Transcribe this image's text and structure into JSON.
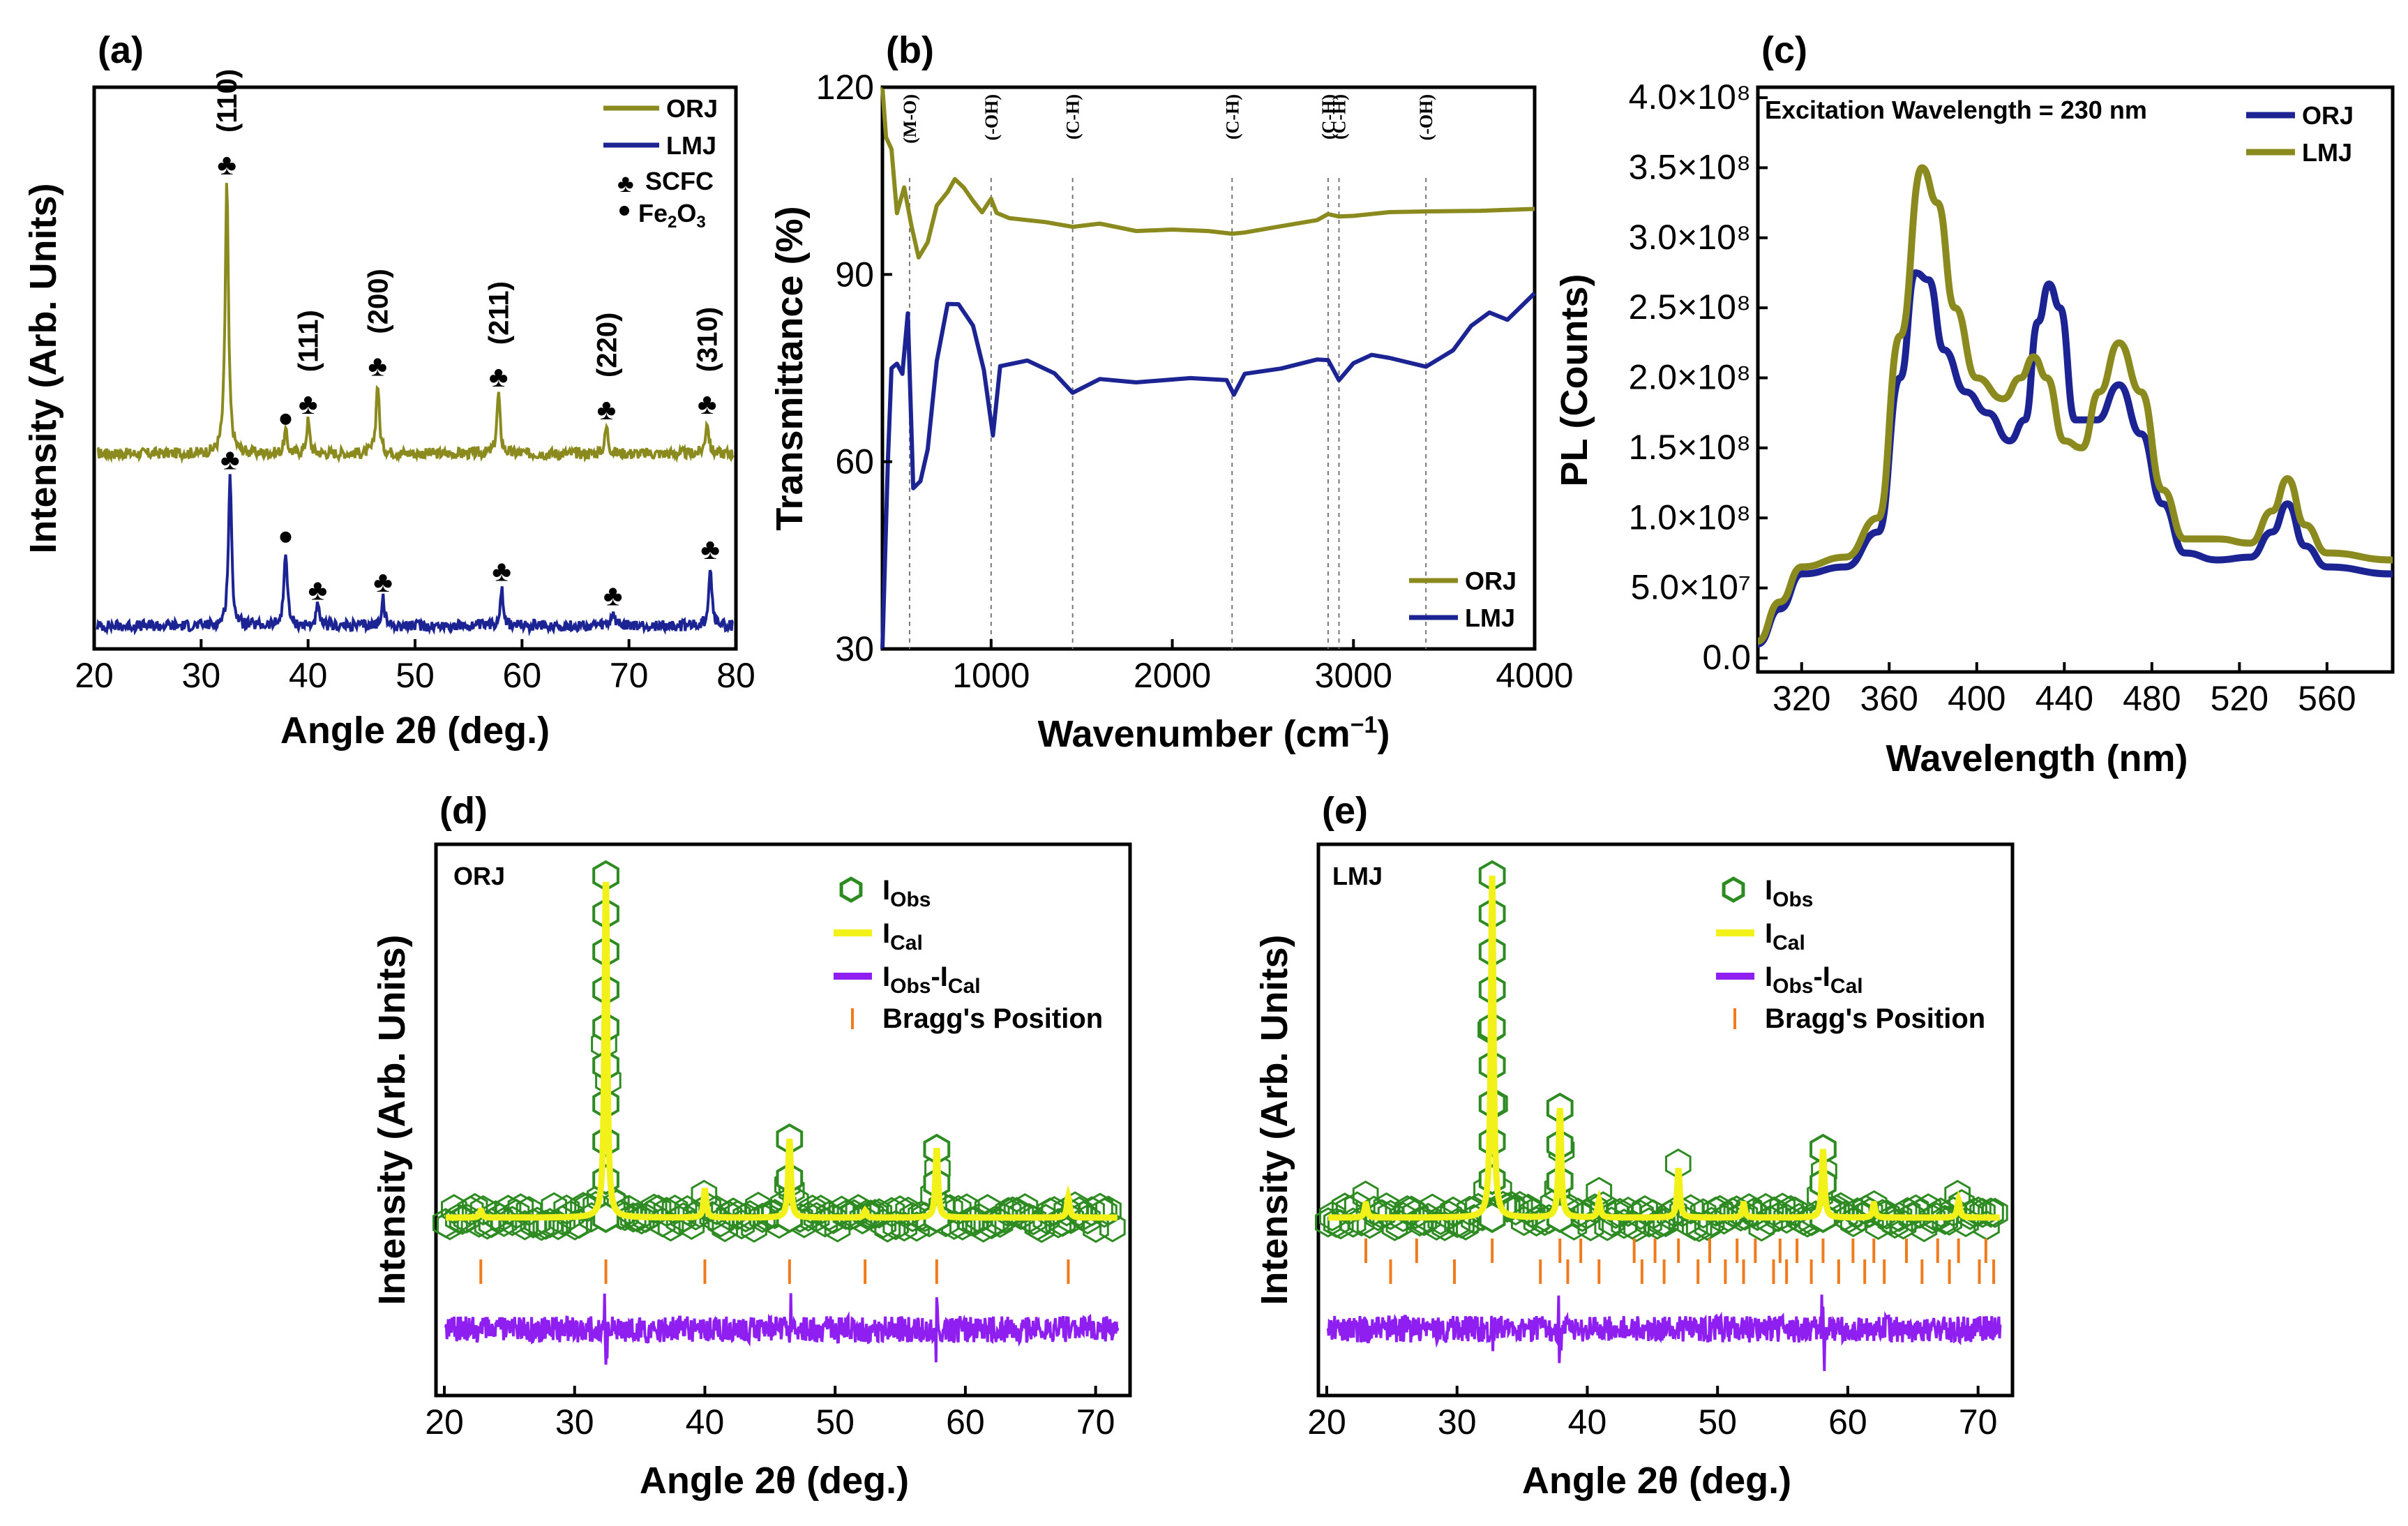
{
  "colors": {
    "orj": "#8a8a1e",
    "lmj": "#1c2493",
    "obs": "#2e8b22",
    "cal": "#f2f21a",
    "diff": "#8f1ff0",
    "bragg": "#f07b1c"
  },
  "chart_data": [
    {
      "id": "a",
      "type": "line",
      "panel_label": "(a)",
      "xlabel": "Angle 2θ (deg.)",
      "ylabel": "Intensity (Arb. Units)",
      "xlim": [
        20,
        80
      ],
      "xticks": [
        20,
        30,
        40,
        50,
        60,
        70,
        80
      ],
      "series": [
        {
          "name": "ORJ",
          "color": "#8a8a1e",
          "offset": 0.55,
          "amp": 1.5,
          "peaks": [
            [
              32.4,
              1.0
            ],
            [
              37.9,
              0.08
            ],
            [
              40.0,
              0.12
            ],
            [
              46.5,
              0.26
            ],
            [
              57.8,
              0.22
            ],
            [
              67.9,
              0.1
            ],
            [
              77.3,
              0.12
            ]
          ]
        },
        {
          "name": "LMJ",
          "color": "#1c2493",
          "offset": 0.05,
          "amp": 1.0,
          "peaks": [
            [
              32.7,
              0.55
            ],
            [
              37.9,
              0.28
            ],
            [
              40.9,
              0.07
            ],
            [
              47.0,
              0.1
            ],
            [
              58.1,
              0.14
            ],
            [
              68.5,
              0.05
            ],
            [
              77.6,
              0.22
            ]
          ]
        }
      ],
      "hkl_labels": [
        {
          "angle": 32.4,
          "label": "(110)"
        },
        {
          "angle": 40.0,
          "label": "(111)"
        },
        {
          "angle": 46.5,
          "label": "(200)"
        },
        {
          "angle": 57.8,
          "label": "(211)"
        },
        {
          "angle": 67.9,
          "label": "(220)"
        },
        {
          "angle": 77.3,
          "label": "(310)"
        }
      ],
      "legend": [
        "ORJ",
        "LMJ",
        "SCFC",
        "Fe2O3"
      ],
      "legend_position": "top-right"
    },
    {
      "id": "b",
      "type": "line",
      "panel_label": "(b)",
      "xlabel": "Wavenumber (cm⁻¹)",
      "ylabel": "Transmittance (%)",
      "xlim": [
        400,
        4000
      ],
      "ylim": [
        30,
        120
      ],
      "xticks": [
        1000,
        2000,
        3000,
        4000
      ],
      "yticks": [
        30,
        60,
        90,
        120
      ],
      "series": [
        {
          "name": "ORJ",
          "color": "#8a8a1e",
          "points": [
            [
              400,
              120
            ],
            [
              420,
              112
            ],
            [
              450,
              110
            ],
            [
              480,
              100
            ],
            [
              520,
              104
            ],
            [
              560,
              98
            ],
            [
              600,
              93
            ],
            [
              650,
              95
            ],
            [
              700,
              101
            ],
            [
              760,
              103
            ],
            [
              800,
              105
            ],
            [
              850,
              104
            ],
            [
              900,
              102
            ],
            [
              950,
              100
            ],
            [
              1000,
              102
            ],
            [
              1030,
              100
            ],
            [
              1100,
              99
            ],
            [
              1300,
              98.5
            ],
            [
              1450,
              97.5
            ],
            [
              1600,
              98
            ],
            [
              1800,
              97
            ],
            [
              2000,
              97
            ],
            [
              2200,
              97
            ],
            [
              2330,
              96.5
            ],
            [
              2400,
              97
            ],
            [
              2600,
              98
            ],
            [
              2800,
              99
            ],
            [
              2860,
              99.5
            ],
            [
              2920,
              99
            ],
            [
              3000,
              99.5
            ],
            [
              3200,
              100
            ],
            [
              3400,
              100
            ],
            [
              3700,
              100
            ],
            [
              4000,
              100.5
            ]
          ]
        },
        {
          "name": "LMJ",
          "color": "#1c2493",
          "points": [
            [
              400,
              30
            ],
            [
              430,
              60
            ],
            [
              450,
              75
            ],
            [
              480,
              76
            ],
            [
              510,
              74
            ],
            [
              540,
              84
            ],
            [
              570,
              56
            ],
            [
              610,
              57
            ],
            [
              650,
              62
            ],
            [
              700,
              76
            ],
            [
              760,
              85
            ],
            [
              820,
              85
            ],
            [
              900,
              82
            ],
            [
              960,
              75
            ],
            [
              1010,
              64
            ],
            [
              1050,
              75
            ],
            [
              1200,
              76
            ],
            [
              1350,
              74
            ],
            [
              1450,
              71
            ],
            [
              1600,
              73
            ],
            [
              1800,
              73
            ],
            [
              2100,
              73.5
            ],
            [
              2300,
              73
            ],
            [
              2340,
              71
            ],
            [
              2400,
              74
            ],
            [
              2600,
              75
            ],
            [
              2800,
              76.5
            ],
            [
              2860,
              76
            ],
            [
              2920,
              73
            ],
            [
              3000,
              76
            ],
            [
              3100,
              77
            ],
            [
              3200,
              76.5
            ],
            [
              3400,
              75.5
            ],
            [
              3550,
              78
            ],
            [
              3650,
              82
            ],
            [
              3750,
              84
            ],
            [
              3850,
              83
            ],
            [
              4000,
              87
            ]
          ]
        }
      ],
      "bands": [
        {
          "wn": 550,
          "label": "(M-O)"
        },
        {
          "wn": 1000,
          "label": "(-OH)"
        },
        {
          "wn": 1450,
          "label": "(C-H)"
        },
        {
          "wn": 2330,
          "label": "(C-H)"
        },
        {
          "wn": 2860,
          "label": "(C-H)"
        },
        {
          "wn": 2920,
          "label": "(C-H)"
        },
        {
          "wn": 3400,
          "label": "(-OH)"
        }
      ],
      "legend_position": "bottom-right"
    },
    {
      "id": "c",
      "type": "line",
      "panel_label": "(c)",
      "xlabel": "Wavelength (nm)",
      "ylabel": "PL (Counts)",
      "annotation": "Excitation Wavelength = 230 nm",
      "xlim": [
        300,
        590
      ],
      "ylim": [
        0,
        400000000.0
      ],
      "xticks": [
        320,
        360,
        400,
        440,
        480,
        520,
        560
      ],
      "ytick_labels": [
        "0.0",
        "5.0×10⁷",
        "1.0×10⁸",
        "1.5×10⁸",
        "2.0×10⁸",
        "2.5×10⁸",
        "3.0×10⁸",
        "3.5×10⁸",
        "4.0×10⁸"
      ],
      "series": [
        {
          "name": "ORJ",
          "color": "#1c2493",
          "points": [
            [
              300,
              10000000.0
            ],
            [
              310,
              35000000.0
            ],
            [
              320,
              60000000.0
            ],
            [
              340,
              65000000.0
            ],
            [
              355,
              90000000.0
            ],
            [
              365,
              200000000.0
            ],
            [
              372,
              275000000.0
            ],
            [
              378,
              270000000.0
            ],
            [
              385,
              220000000.0
            ],
            [
              395,
              190000000.0
            ],
            [
              405,
              175000000.0
            ],
            [
              415,
              155000000.0
            ],
            [
              422,
              170000000.0
            ],
            [
              428,
              240000000.0
            ],
            [
              433,
              267000000.0
            ],
            [
              438,
              250000000.0
            ],
            [
              445,
              170000000.0
            ],
            [
              455,
              170000000.0
            ],
            [
              465,
              195000000.0
            ],
            [
              475,
              160000000.0
            ],
            [
              485,
              110000000.0
            ],
            [
              495,
              75000000.0
            ],
            [
              510,
              70000000.0
            ],
            [
              525,
              72000000.0
            ],
            [
              535,
              90000000.0
            ],
            [
              542,
              110000000.0
            ],
            [
              550,
              80000000.0
            ],
            [
              560,
              65000000.0
            ],
            [
              590,
              60000000.0
            ]
          ]
        },
        {
          "name": "LMJ",
          "color": "#8a8a1e",
          "points": [
            [
              300,
              12000000.0
            ],
            [
              310,
              40000000.0
            ],
            [
              320,
              65000000.0
            ],
            [
              340,
              72000000.0
            ],
            [
              355,
              100000000.0
            ],
            [
              365,
              230000000.0
            ],
            [
              375,
              350000000.0
            ],
            [
              382,
              325000000.0
            ],
            [
              390,
              250000000.0
            ],
            [
              400,
              200000000.0
            ],
            [
              412,
              185000000.0
            ],
            [
              420,
              200000000.0
            ],
            [
              426,
              215000000.0
            ],
            [
              432,
              200000000.0
            ],
            [
              440,
              155000000.0
            ],
            [
              448,
              150000000.0
            ],
            [
              456,
              190000000.0
            ],
            [
              465,
              225000000.0
            ],
            [
              475,
              190000000.0
            ],
            [
              485,
              120000000.0
            ],
            [
              495,
              85000000.0
            ],
            [
              510,
              85000000.0
            ],
            [
              525,
              82000000.0
            ],
            [
              535,
              105000000.0
            ],
            [
              542,
              128000000.0
            ],
            [
              550,
              95000000.0
            ],
            [
              560,
              75000000.0
            ],
            [
              590,
              70000000.0
            ]
          ]
        }
      ],
      "legend_position": "top-right"
    },
    {
      "id": "d",
      "type": "line",
      "panel_label": "(d)",
      "sample": "ORJ",
      "xlabel": "Angle 2θ (deg.)",
      "ylabel": "Intensity (Arb. Units)",
      "xlim": [
        20,
        72
      ],
      "xticks": [
        20,
        30,
        40,
        50,
        60,
        70
      ],
      "peaks": [
        [
          22.8,
          0.02
        ],
        [
          32.4,
          1.0
        ],
        [
          40.0,
          0.08
        ],
        [
          46.5,
          0.23
        ],
        [
          52.3,
          0.02
        ],
        [
          57.8,
          0.2
        ],
        [
          67.9,
          0.06
        ]
      ],
      "bragg_positions": [
        22.8,
        32.4,
        40.0,
        46.5,
        52.3,
        57.8,
        67.9
      ],
      "legend": [
        "I_Obs",
        "I_Cal",
        "I_Obs-I_Cal",
        "Bragg's Position"
      ],
      "legend_position": "top-right"
    },
    {
      "id": "e",
      "type": "line",
      "panel_label": "(e)",
      "sample": "LMJ",
      "xlabel": "Angle 2θ (deg.)",
      "ylabel": "Intensity (Arb. Units)",
      "xlim": [
        20,
        72
      ],
      "xticks": [
        20,
        30,
        40,
        50,
        60,
        70
      ],
      "peaks": [
        [
          23.0,
          0.04
        ],
        [
          32.7,
          1.0
        ],
        [
          37.9,
          0.32
        ],
        [
          40.9,
          0.05
        ],
        [
          47.0,
          0.14
        ],
        [
          52.0,
          0.04
        ],
        [
          58.1,
          0.2
        ],
        [
          62.0,
          0.04
        ],
        [
          68.5,
          0.05
        ]
      ],
      "bragg_positions": [
        23.0,
        24.9,
        26.9,
        29.8,
        32.7,
        36.4,
        37.9,
        38.5,
        39.5,
        40.9,
        43.6,
        44.2,
        45.2,
        45.9,
        47.0,
        48.5,
        49.4,
        50.6,
        51.5,
        52.0,
        52.9,
        54.3,
        54.8,
        55.3,
        56.1,
        57.2,
        58.1,
        59.3,
        60.4,
        61.3,
        62.0,
        62.8,
        64.5,
        65.7,
        66.9,
        67.8,
        68.5,
        70.1,
        70.6,
        71.2
      ],
      "legend": [
        "I_Obs",
        "I_Cal",
        "I_Obs-I_Cal",
        "Bragg's Position"
      ],
      "legend_position": "top-right"
    }
  ],
  "labels": {
    "a": {
      "panel": "(a)",
      "xlabel": "Angle 2θ (deg.)",
      "ylabel": "Intensity (Arb. Units)",
      "leg1": "ORJ",
      "leg2": "LMJ",
      "leg3": "SCFC",
      "leg4": "Fe2O3"
    },
    "b": {
      "panel": "(b)",
      "xlabel_main": "Wavenumber (cm",
      "xlabel_sup": "−1",
      "xlabel_end": ")",
      "ylabel": "Transmittance (%)",
      "leg1": "ORJ",
      "leg2": "LMJ"
    },
    "c": {
      "panel": "(c)",
      "xlabel": "Wavelength (nm)",
      "ylabel": "PL (Counts)",
      "annot": "Excitation Wavelength = 230 nm",
      "leg1": "ORJ",
      "leg2": "LMJ"
    },
    "d": {
      "panel": "(d)",
      "sample": "ORJ",
      "xlabel": "Angle 2θ (deg.)",
      "ylabel": "Intensity (Arb. Units)"
    },
    "e": {
      "panel": "(e)",
      "sample": "LMJ",
      "xlabel": "Angle 2θ (deg.)",
      "ylabel": "Intensity (Arb. Units)"
    },
    "rietveld_legend": {
      "obs": "Obs",
      "cal": "Cal",
      "diff_a": "Obs",
      "diff_b": "Cal",
      "bragg": "Bragg's Position",
      "i": "I"
    }
  }
}
